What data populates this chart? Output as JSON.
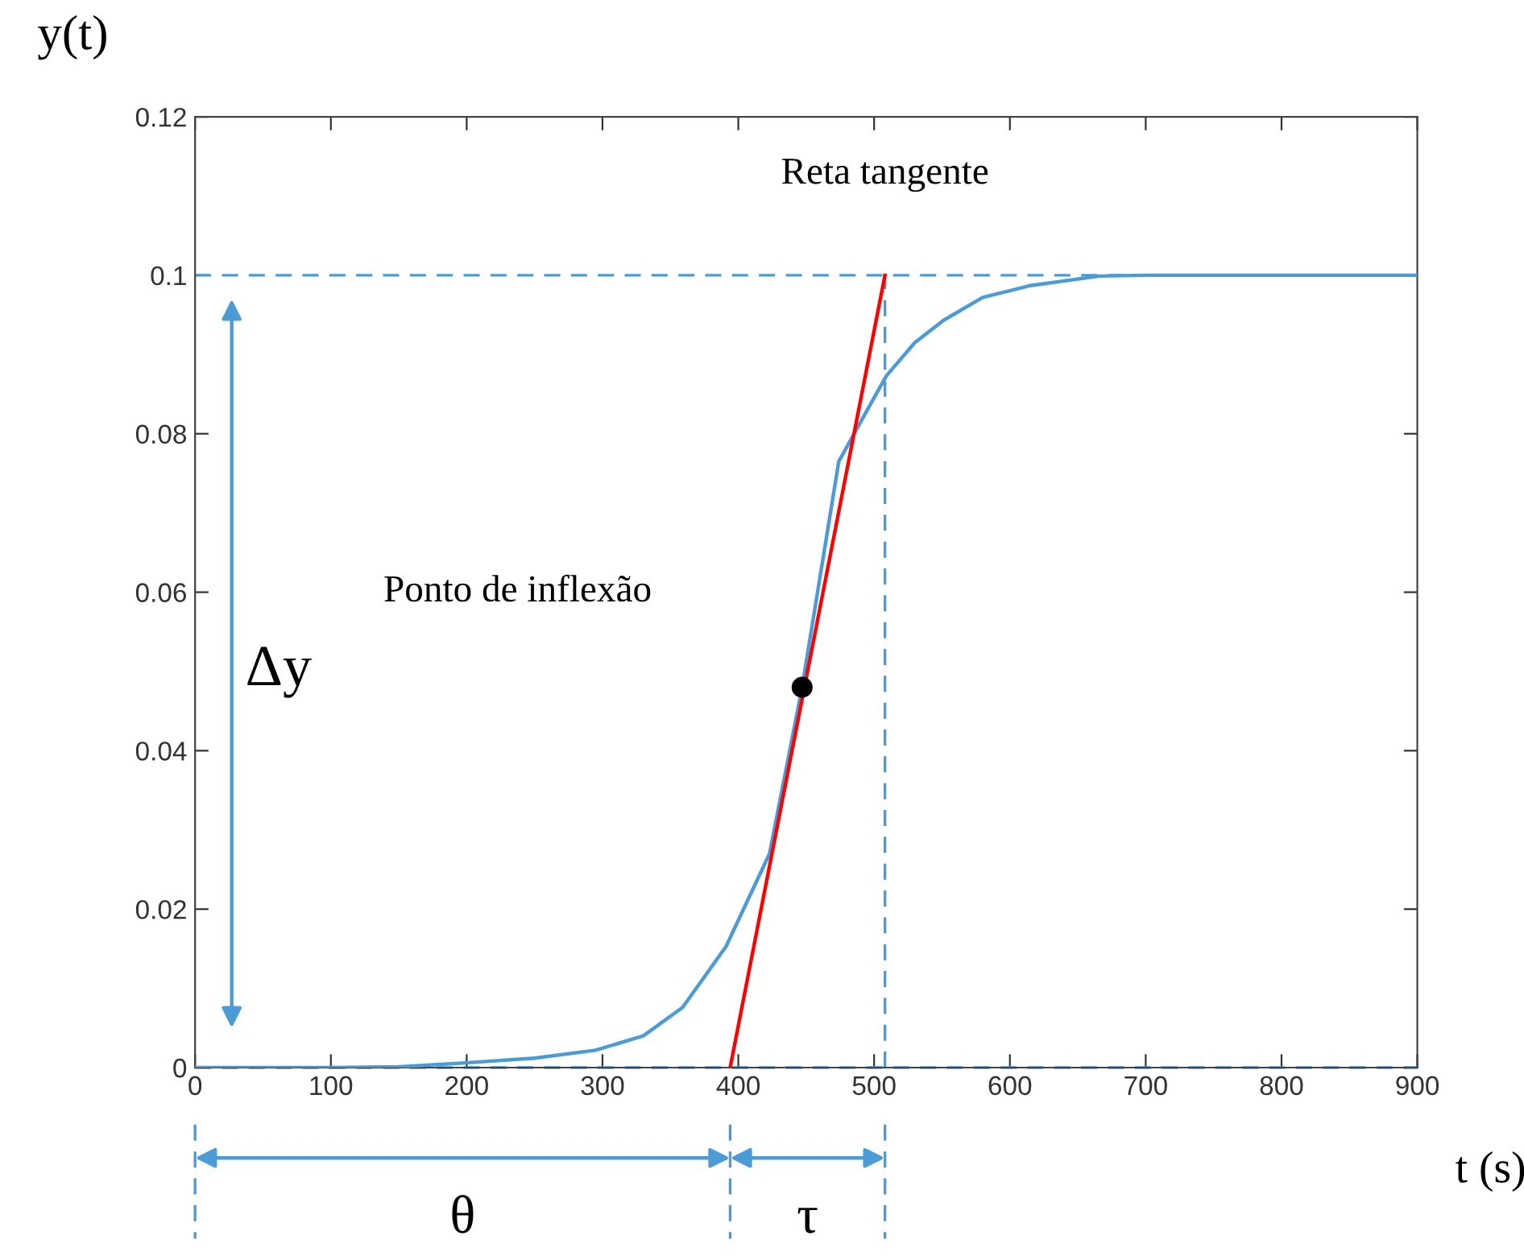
{
  "chart_data": {
    "type": "line",
    "xlabel": "t (s)",
    "ylabel": "y(t)",
    "xlim": [
      0,
      900
    ],
    "xticks": [
      0,
      100,
      200,
      300,
      400,
      500,
      600,
      700,
      800,
      900
    ],
    "ylim": [
      0,
      0.12
    ],
    "yticks": [
      0,
      0.02,
      0.04,
      0.06,
      0.08,
      0.1,
      0.12
    ],
    "grid": false,
    "series": [
      {
        "color": "#4a9bd6",
        "x": [
          0,
          100,
          150,
          199,
          250,
          295,
          330,
          359,
          391,
          423,
          447,
          474,
          495,
          509,
          530,
          551,
          580,
          615,
          666,
          700,
          800,
          900
        ],
        "values": [
          0,
          0,
          0.0001,
          0.0006,
          0.0012,
          0.0022,
          0.004,
          0.0076,
          0.0153,
          0.027,
          0.048,
          0.0765,
          0.083,
          0.0873,
          0.0915,
          0.0943,
          0.0972,
          0.0987,
          0.0999,
          0.1,
          0.1,
          0.1
        ]
      },
      {
        "color": "#ff0000",
        "x": [
          394,
          508
        ],
        "values": [
          0,
          0.1
        ]
      },
      {
        "type": "scatter",
        "color": "#000000",
        "marker": "circle",
        "x": [
          447
        ],
        "values": [
          0.048
        ]
      }
    ],
    "ref_lines": [
      {
        "axis": "y",
        "value": 0.1,
        "color": "#4a9bd6",
        "line_style": "dashed"
      },
      {
        "axis": "y",
        "value": 0,
        "color": "#4a9bd6",
        "line_style": "dashed"
      },
      {
        "axis": "x",
        "value": 508,
        "color": "#4a9bd6",
        "line_style": "dashed"
      }
    ],
    "annotations": [
      {
        "text": "Reta tangente",
        "x": 508,
        "y": 0.1
      },
      "Ponto de inflexão",
      "Δy",
      "θ",
      "τ"
    ]
  }
}
